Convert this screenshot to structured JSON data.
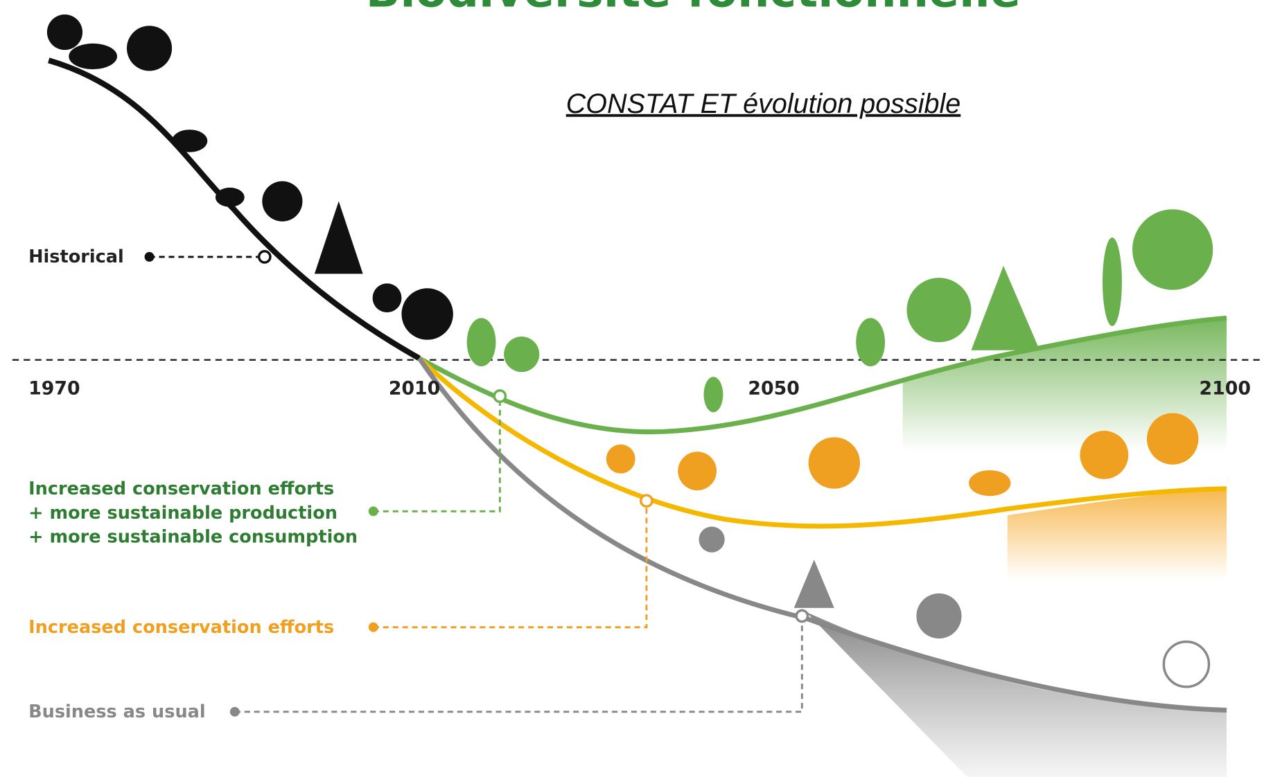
{
  "header": {
    "title": "Biodiversité fonctionnelle",
    "subtitle": "CONSTAT ET évolution possible"
  },
  "timeline": {
    "years": [
      "1970",
      "2010",
      "2050",
      "2100"
    ]
  },
  "scenarios": {
    "historical": "Historical",
    "green": [
      "Increased conservation efforts",
      "+ more sustainable production",
      "+ more sustainable consumption"
    ],
    "orange": "Increased conservation efforts",
    "gray": "Business as usual"
  }
}
